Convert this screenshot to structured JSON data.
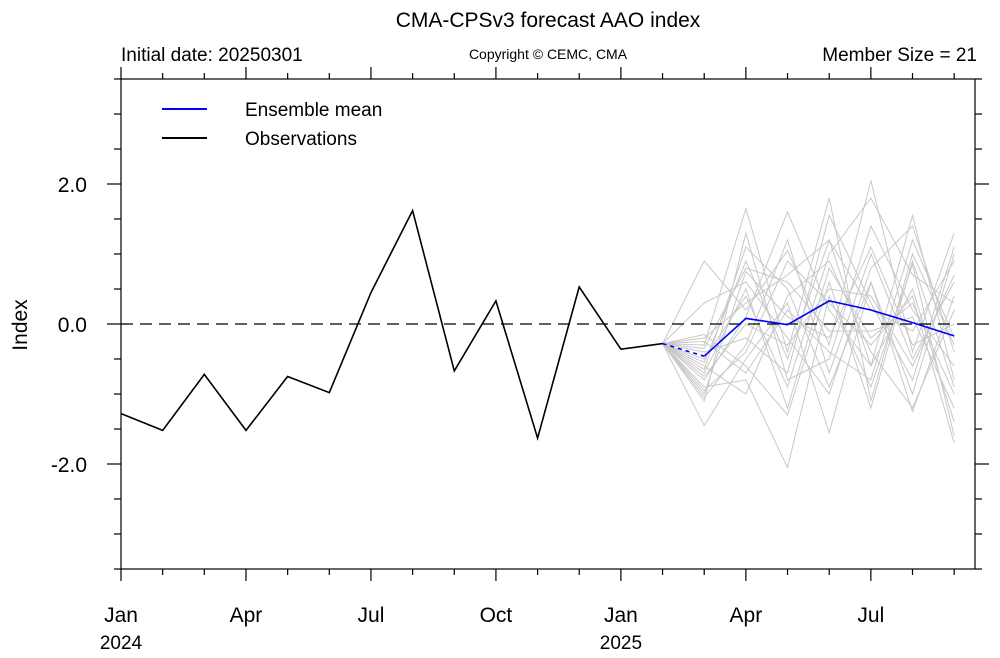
{
  "chart_data": {
    "type": "line",
    "title": "CMA-CPSv3 forecast AAO index",
    "subtitle_left": "Initial date: 20250301",
    "subtitle_center": "Copyright © CEMC, CMA",
    "subtitle_right": "Member Size = 21",
    "ylabel": "Index",
    "ylim": [
      -3.5,
      3.5
    ],
    "xlim": [
      0,
      20.5
    ],
    "y_ticks": [
      {
        "value": 2,
        "label": "2.0"
      },
      {
        "value": 0,
        "label": "0.0"
      },
      {
        "value": -2,
        "label": "-2.0"
      }
    ],
    "x_ticks": [
      {
        "value": 0,
        "label": "Jan",
        "year": "2024"
      },
      {
        "value": 3,
        "label": "Apr",
        "year": ""
      },
      {
        "value": 6,
        "label": "Jul",
        "year": ""
      },
      {
        "value": 9,
        "label": "Oct",
        "year": ""
      },
      {
        "value": 12,
        "label": "Jan",
        "year": "2025"
      },
      {
        "value": 15,
        "label": "Apr",
        "year": ""
      },
      {
        "value": 18,
        "label": "Jul",
        "year": ""
      }
    ],
    "zero_line": true,
    "legend": {
      "position": "top-left",
      "entries": [
        {
          "label": "Ensemble mean",
          "color": "#0000ff"
        },
        {
          "label": "Observations",
          "color": "#000000"
        }
      ]
    },
    "series": [
      {
        "name": "Observations",
        "color": "#000000",
        "x": [
          0,
          1,
          2,
          3,
          4,
          5,
          6,
          7,
          8,
          9,
          10,
          11,
          12,
          13
        ],
        "values": [
          -1.28,
          -1.52,
          -0.72,
          -1.52,
          -0.75,
          -0.98,
          0.45,
          1.62,
          -0.67,
          0.33,
          -1.63,
          0.53,
          -0.36,
          -0.28
        ]
      },
      {
        "name": "Ensemble mean",
        "color": "#0000ff",
        "x": [
          13,
          14,
          15,
          16,
          17,
          18,
          19,
          20
        ],
        "values": [
          -0.28,
          -0.46,
          0.08,
          -0.01,
          0.33,
          0.2,
          0.02,
          -0.17
        ],
        "dashed_until": 14
      }
    ],
    "members": {
      "color": "#c8c8c8",
      "x": [
        13,
        14,
        15,
        16,
        17,
        18,
        19,
        20
      ],
      "values": [
        [
          -0.28,
          -0.55,
          0.9,
          -0.5,
          1.2,
          -0.6,
          1.55,
          -0.8
        ],
        [
          -0.28,
          -1.05,
          -0.3,
          1.2,
          -0.7,
          1.0,
          -0.5,
          0.6
        ],
        [
          -0.28,
          -0.7,
          0.5,
          -1.2,
          0.8,
          -0.2,
          0.3,
          -1.0
        ],
        [
          -0.28,
          -0.3,
          1.65,
          -0.4,
          1.8,
          -1.1,
          1.0,
          -0.3
        ],
        [
          -0.28,
          -1.45,
          -0.5,
          0.3,
          -1.55,
          0.6,
          -1.25,
          0.4
        ],
        [
          -0.28,
          0.9,
          0.2,
          1.05,
          -0.3,
          2.05,
          -0.4,
          1.3
        ],
        [
          -0.28,
          -0.9,
          -0.8,
          -2.05,
          0.4,
          -0.9,
          0.85,
          -1.6
        ],
        [
          -0.28,
          -0.2,
          0.3,
          0.7,
          1.2,
          0.2,
          -0.1,
          0.9
        ],
        [
          -0.28,
          -1.1,
          1.3,
          -0.8,
          -0.5,
          1.4,
          0.2,
          -0.6
        ],
        [
          -0.28,
          -0.6,
          -1.0,
          0.4,
          0.9,
          -0.4,
          -1.2,
          0.2
        ],
        [
          -0.28,
          0.3,
          0.6,
          -0.2,
          -1.0,
          0.8,
          1.4,
          -0.4
        ],
        [
          -0.28,
          -0.8,
          0.1,
          1.6,
          0.2,
          -0.6,
          0.5,
          -1.4
        ],
        [
          -0.28,
          -0.4,
          -0.2,
          -0.7,
          1.55,
          0.3,
          -0.8,
          1.1
        ],
        [
          -0.28,
          -1.0,
          0.75,
          0.1,
          -0.2,
          1.1,
          -0.3,
          0.0
        ],
        [
          -0.28,
          -0.15,
          -0.6,
          -1.3,
          0.6,
          -1.2,
          0.9,
          -0.9
        ],
        [
          -0.28,
          -0.65,
          1.1,
          0.5,
          -0.9,
          0.6,
          -1.0,
          1.0
        ],
        [
          -0.28,
          -0.95,
          -0.4,
          0.9,
          0.3,
          -0.3,
          0.4,
          -1.7
        ],
        [
          -0.28,
          -0.5,
          0.4,
          -0.9,
          1.0,
          1.8,
          0.7,
          0.3
        ],
        [
          -0.28,
          -0.25,
          -0.7,
          0.2,
          -0.4,
          -0.8,
          1.2,
          -0.2
        ],
        [
          -0.28,
          -0.75,
          0.0,
          -0.3,
          0.5,
          0.4,
          -0.6,
          0.7
        ],
        [
          -0.28,
          -0.35,
          0.8,
          0.6,
          -0.1,
          -0.1,
          0.1,
          -1.2
        ]
      ]
    }
  }
}
